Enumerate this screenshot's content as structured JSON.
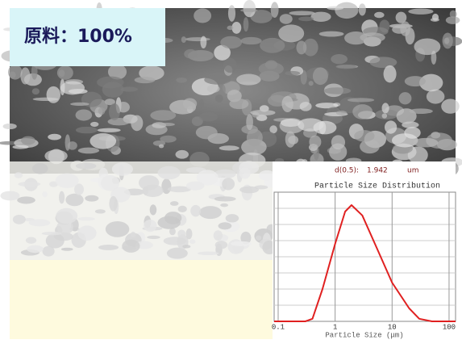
{
  "label": "原料：100%",
  "chart_data": {
    "type": "line",
    "stat_name": "d(0.5):",
    "stat_value": "1.942",
    "stat_unit": "um",
    "title": "Particle Size Distribution",
    "xlabel": "Particle Size (μm)",
    "x": [
      0.085,
      0.3,
      0.4,
      0.6,
      1,
      1.5,
      1.94,
      3,
      5,
      10,
      20,
      30,
      50,
      130
    ],
    "series": [
      {
        "color": "#e02020",
        "values": [
          0,
          0,
          2,
          25,
          60,
          85,
          90,
          82,
          60,
          30,
          10,
          2,
          0,
          0
        ]
      }
    ],
    "xlim": [
      0.085,
      130
    ],
    "ylim": [
      0,
      100
    ],
    "xticks": [
      0.1,
      1,
      10,
      100
    ],
    "xlog": true,
    "grid": true
  }
}
